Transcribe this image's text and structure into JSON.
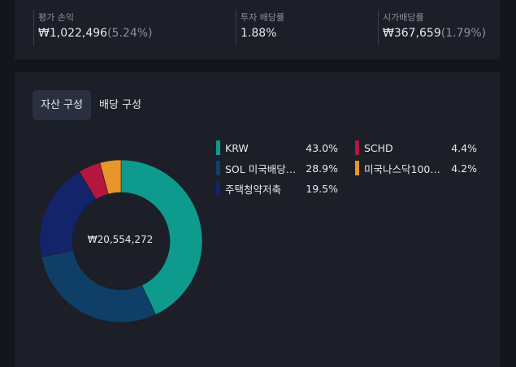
{
  "summary": {
    "valuation": {
      "label": "평가 손익",
      "value": "₩1,022,496",
      "pct": "(5.24%)"
    },
    "dividend_rate": {
      "label": "투자 배당률",
      "value": "1.88%"
    },
    "market_dividend": {
      "label": "시가배당률",
      "value": "₩367,659",
      "pct": "(1.79%)"
    }
  },
  "tabs": [
    {
      "label": "자산 구성",
      "active": true
    },
    {
      "label": "배당 구성",
      "active": false
    }
  ],
  "total": "₩20,554,272",
  "colors": {
    "KRW": "#0e9b8e",
    "SOL": "#0f3f67",
    "HOUSING": "#13246a",
    "SCHD": "#b3163f",
    "NASDAQ": "#e8962a"
  },
  "legend": [
    {
      "name": "KRW",
      "pct": "43.0%",
      "color_key": "KRW"
    },
    {
      "name": "SOL 미국배당…",
      "pct": "28.9%",
      "color_key": "SOL"
    },
    {
      "name": "주택청약저축",
      "pct": "19.5%",
      "color_key": "HOUSING"
    },
    {
      "name": "SCHD",
      "pct": "4.4%",
      "color_key": "SCHD"
    },
    {
      "name": "미국나스닥100…",
      "pct": "4.2%",
      "color_key": "NASDAQ"
    }
  ],
  "chart_data": {
    "type": "pie",
    "categories": [
      "KRW",
      "SOL 미국배당…",
      "주택청약저축",
      "SCHD",
      "미국나스닥100…"
    ],
    "values": [
      43.0,
      28.9,
      19.5,
      4.4,
      4.2
    ],
    "center_label": "₩20,554,272"
  }
}
